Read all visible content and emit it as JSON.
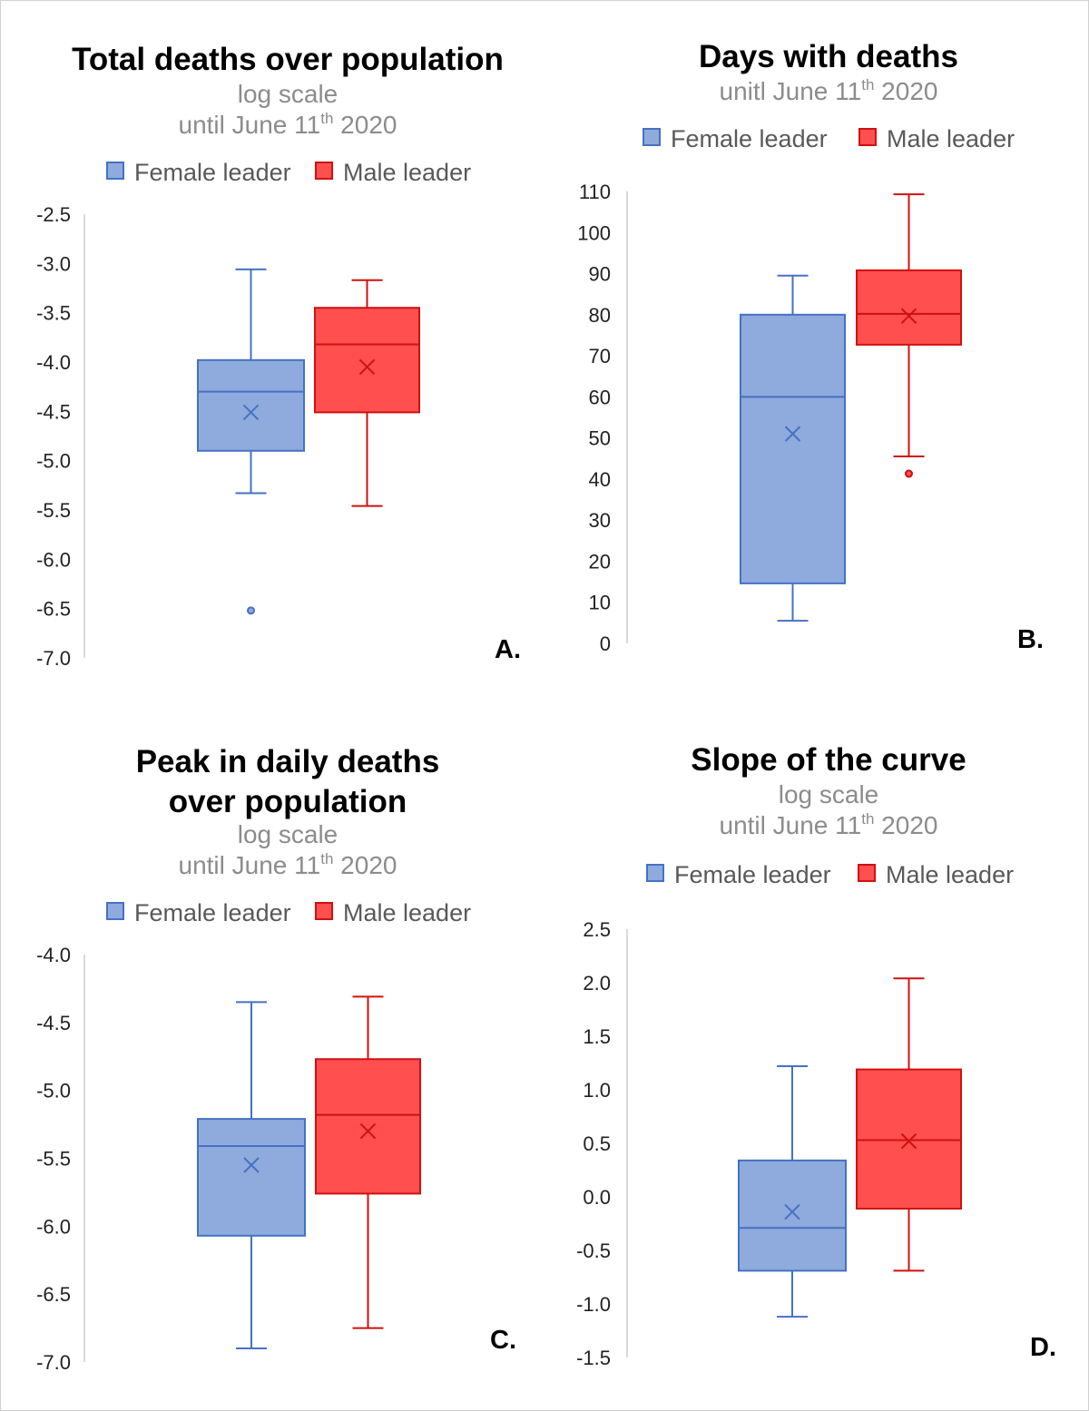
{
  "chart_data": [
    {
      "type": "box",
      "title": "Total deaths over population",
      "subtitle_lines": [
        [
          "log scale"
        ],
        [
          "until June 11",
          "th",
          " 2020"
        ]
      ],
      "panel_label": "A.",
      "legend": [
        "Female leader",
        "Male leader"
      ],
      "legend_placement": "top",
      "scale_note": "log scale",
      "ylim": [
        -7.0,
        -2.5
      ],
      "yticks": [
        "-2.5",
        "-3.0",
        "-3.5",
        "-4.0",
        "-4.5",
        "-5.0",
        "-5.5",
        "-6.0",
        "-6.5",
        "-7.0"
      ],
      "grid": false,
      "series": [
        {
          "name": "Female leader",
          "color": "#8faadc",
          "stroke": "#4472c4",
          "whisker_high": -3.06,
          "q3": -3.98,
          "median": -4.3,
          "mean": -4.51,
          "q1": -4.9,
          "whisker_low": -5.33,
          "outliers": [
            -6.52
          ]
        },
        {
          "name": "Male leader",
          "color": "#ff4f4f",
          "stroke": "#d01010",
          "whisker_high": -3.17,
          "q3": -3.45,
          "median": -3.82,
          "mean": -4.05,
          "q1": -4.51,
          "whisker_low": -5.46,
          "outliers": []
        }
      ]
    },
    {
      "type": "box",
      "title": "Days with deaths",
      "subtitle_lines": [
        [
          "unitl June 11",
          "th",
          " 2020"
        ]
      ],
      "panel_label": "B.",
      "legend": [
        "Female leader",
        "Male leader"
      ],
      "legend_placement": "top",
      "ylim": [
        0,
        110
      ],
      "yticks": [
        "110",
        "100",
        "90",
        "80",
        "70",
        "60",
        "50",
        "40",
        "30",
        "20",
        "10",
        "0"
      ],
      "grid": false,
      "series": [
        {
          "name": "Female leader",
          "color": "#8faadc",
          "stroke": "#4472c4",
          "whisker_high": 89.5,
          "q3": 80,
          "median": 60,
          "mean": 51,
          "q1": 14.6,
          "whisker_low": 5.5,
          "outliers": []
        },
        {
          "name": "Male leader",
          "color": "#ff4f4f",
          "stroke": "#d01010",
          "whisker_high": 109.3,
          "q3": 90.8,
          "median": 80.2,
          "mean": 79.7,
          "q1": 72.7,
          "whisker_low": 45.5,
          "outliers": [
            41.3
          ]
        }
      ]
    },
    {
      "type": "box",
      "title": "Peak in daily deaths\nover population",
      "title_lines": [
        "Peak in daily deaths",
        "over population"
      ],
      "subtitle_lines": [
        [
          "log scale"
        ],
        [
          "until June 11",
          "th",
          " 2020"
        ]
      ],
      "panel_label": "C.",
      "legend": [
        "Female leader",
        "Male leader"
      ],
      "legend_placement": "top",
      "ylim": [
        -7.0,
        -4.0
      ],
      "yticks": [
        "-4.0",
        "-4.5",
        "-5.0",
        "-5.5",
        "-6.0",
        "-6.5",
        "-7.0"
      ],
      "grid": false,
      "series": [
        {
          "name": "Female leader",
          "color": "#8faadc",
          "stroke": "#4472c4",
          "whisker_high": -4.35,
          "q3": -5.21,
          "median": -5.41,
          "mean": -5.55,
          "q1": -6.07,
          "whisker_low": -6.9,
          "outliers": []
        },
        {
          "name": "Male leader",
          "color": "#ff4f4f",
          "stroke": "#d01010",
          "whisker_high": -4.31,
          "q3": -4.77,
          "median": -5.18,
          "mean": -5.3,
          "q1": -5.76,
          "whisker_low": -6.75,
          "outliers": []
        }
      ]
    },
    {
      "type": "box",
      "title": "Slope of the curve",
      "subtitle_lines": [
        [
          "log scale"
        ],
        [
          "until June 11",
          "th",
          " 2020"
        ]
      ],
      "panel_label": "D.",
      "legend": [
        "Female leader",
        "Male leader"
      ],
      "legend_placement": "top",
      "ylim": [
        -1.5,
        2.5
      ],
      "yticks": [
        "2.5",
        "2.0",
        "1.5",
        "1.0",
        "0.5",
        "0.0",
        "-0.5",
        "-1.0",
        "-1.5"
      ],
      "grid": false,
      "series": [
        {
          "name": "Female leader",
          "color": "#8faadc",
          "stroke": "#4472c4",
          "whisker_high": 1.22,
          "q3": 0.34,
          "median": -0.29,
          "mean": -0.14,
          "q1": -0.69,
          "whisker_low": -1.12,
          "outliers": []
        },
        {
          "name": "Male leader",
          "color": "#ff4f4f",
          "stroke": "#d01010",
          "whisker_high": 2.04,
          "q3": 1.19,
          "median": 0.53,
          "mean": 0.52,
          "q1": -0.11,
          "whisker_low": -0.69,
          "outliers": []
        }
      ]
    }
  ]
}
